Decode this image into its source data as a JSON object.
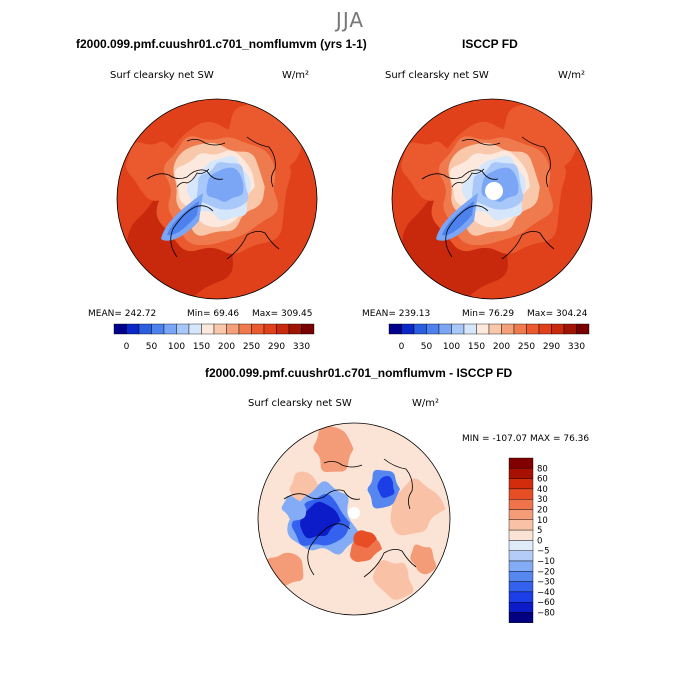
{
  "figure": {
    "season": "JJA"
  },
  "colors": {
    "scale": [
      "#00008b",
      "#0a28c8",
      "#2c5ee0",
      "#4d82ee",
      "#7aa6f5",
      "#a8c8fa",
      "#d6e6fb",
      "#fce8dc",
      "#f9c7aa",
      "#f4a07a",
      "#ef7a4e",
      "#ea5a2e",
      "#e0401a",
      "#c8280c",
      "#a01404",
      "#780000"
    ],
    "diff_scale": [
      "#000080",
      "#0c1cc8",
      "#1b3ee6",
      "#3462ee",
      "#5686f0",
      "#84abf5",
      "#b4cdf8",
      "#e0ebfa",
      "#fbe4d6",
      "#f9c2a6",
      "#f49b78",
      "#ef744c",
      "#e84e26",
      "#d22c0c",
      "#a81000",
      "#800000"
    ]
  },
  "chart_data": [
    {
      "type": "heatmap",
      "title": "f2000.099.pmf.cuushr01.c701_nomflumvm (yrs 1-1)",
      "subtitle": "Surf clearsky net SW",
      "units": "W/m²",
      "projection": "north polar stereographic",
      "stats": {
        "mean": 242.72,
        "min": 69.46,
        "max": 309.45
      },
      "stats_text": {
        "mean": "MEAN= 242.72",
        "min": "Min=   69.46",
        "max": "Max= 309.45"
      },
      "colorbar_ticks": [
        "0",
        "50",
        "100",
        "150",
        "200",
        "250",
        "290",
        "330"
      ],
      "field": {
        "outer": 290,
        "mid": 250,
        "inner": 150,
        "core": 100,
        "pole": 120
      }
    },
    {
      "type": "heatmap",
      "title": "ISCCP FD",
      "subtitle": "Surf clearsky net SW",
      "units": "W/m²",
      "projection": "north polar stereographic",
      "stats": {
        "mean": 239.13,
        "min": 76.29,
        "max": 304.24
      },
      "stats_text": {
        "mean": "MEAN= 239.13",
        "min": "Min=   76.29",
        "max": "Max= 304.24"
      },
      "colorbar_ticks": [
        "0",
        "50",
        "100",
        "150",
        "200",
        "250",
        "290",
        "330"
      ],
      "field": {
        "outer": 290,
        "mid": 250,
        "inner": 150,
        "core": 100,
        "pole": "missing"
      }
    },
    {
      "type": "heatmap",
      "title": "f2000.099.pmf.cuushr01.c701_nomflumvm - ISCCP FD",
      "subtitle": "Surf clearsky net SW",
      "units": "W/m²",
      "projection": "north polar stereographic",
      "stats": {
        "min": -107.07,
        "max": 76.36
      },
      "stats_text": "MIN = -107.07  MAX =   76.36",
      "colorbar_levels": [
        "80",
        "60",
        "40",
        "30",
        "20",
        "10",
        "5",
        "0",
        "−5",
        "−10",
        "−20",
        "−30",
        "−40",
        "−60",
        "−80"
      ]
    }
  ]
}
